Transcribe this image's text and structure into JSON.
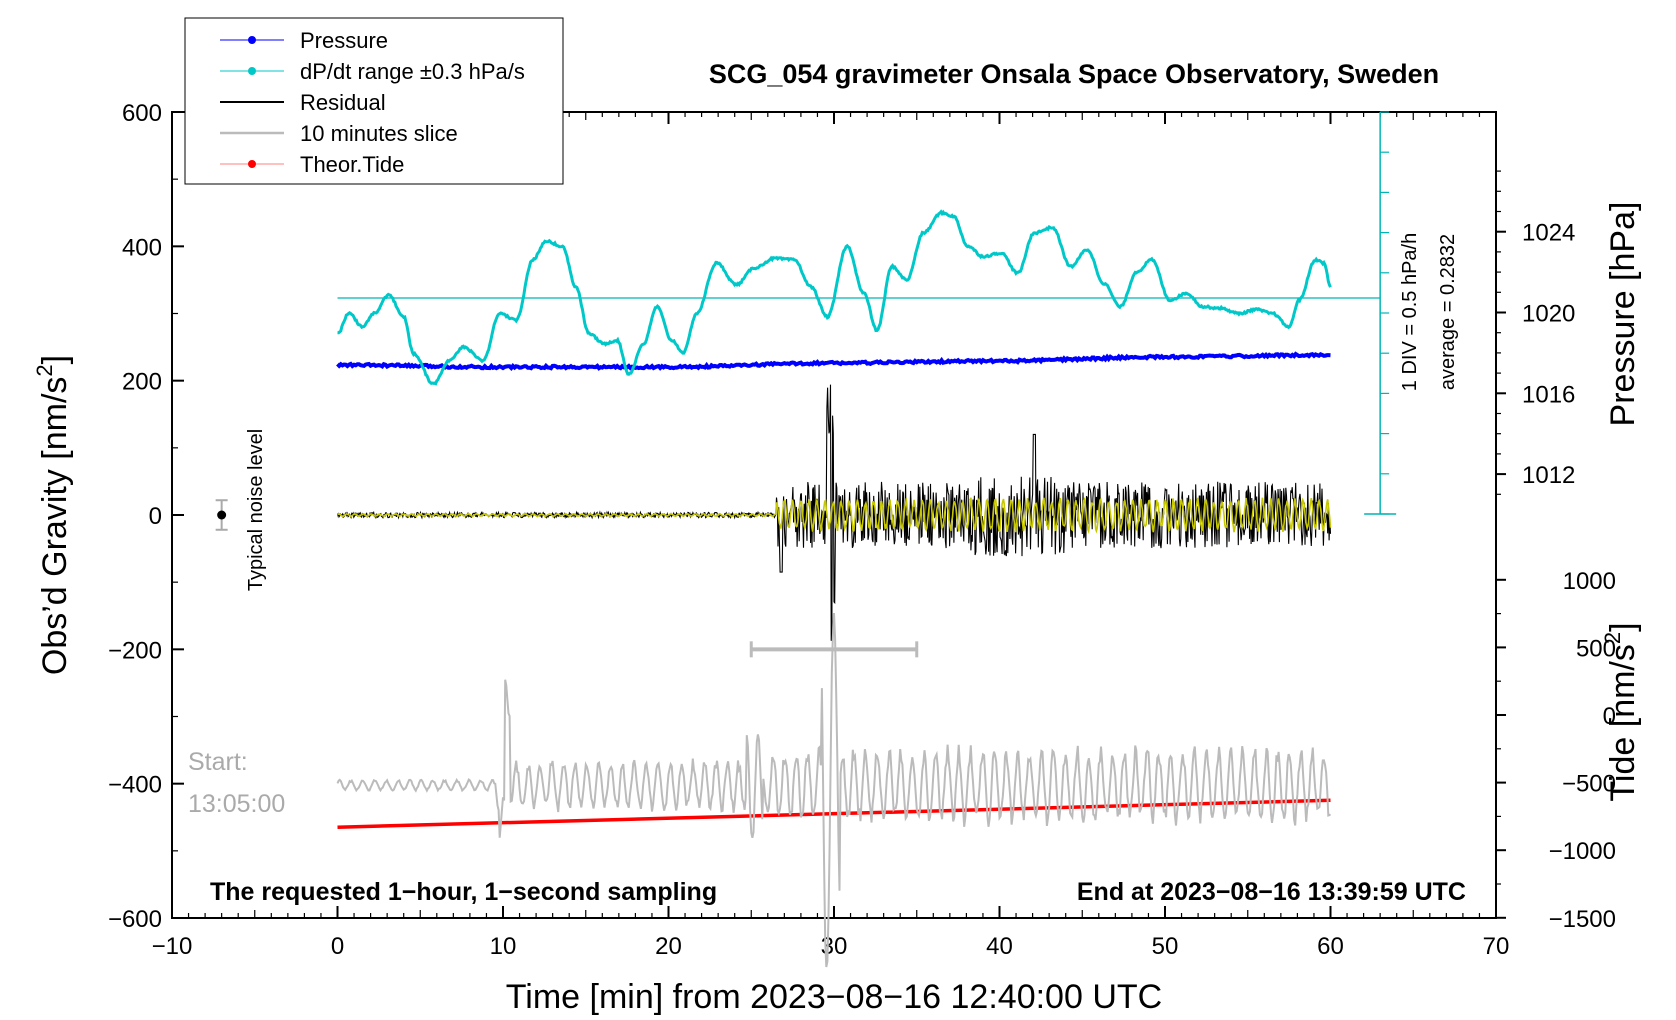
{
  "chart_data": {
    "type": "line",
    "title": "SCG_054 gravimeter Onsala Space Observatory, Sweden",
    "xlabel": "Time [min] from 2023−08−16 12:40:00 UTC",
    "ylabel_left_text": "Obs’d Gravity [nm/s",
    "ylabel_left_sup": "2",
    "ylabel_left_close": "]",
    "ylabel_right_pressure": "Pressure [hPa]",
    "ylabel_right_tide_text": "Tide [nm/s",
    "ylabel_right_tide_sup": "2",
    "ylabel_right_tide_close": "]",
    "xlim": [
      -10,
      70
    ],
    "xticks": [
      -10,
      0,
      10,
      20,
      30,
      40,
      50,
      60,
      70
    ],
    "xtick_labels": [
      "−10",
      "0",
      "10",
      "20",
      "30",
      "40",
      "50",
      "60",
      "70"
    ],
    "ylim": [
      -600,
      600
    ],
    "yticks": [
      -600,
      -400,
      -200,
      0,
      200,
      400,
      600
    ],
    "ytick_labels": [
      "−600",
      "−400",
      "−200",
      "0",
      "200",
      "400",
      "600"
    ],
    "pressure_ticks": [
      1012,
      1016,
      1020,
      1024
    ],
    "pressure_tick_labels": [
      "1012",
      "1016",
      "1020",
      "1024"
    ],
    "tide_ticks": [
      -1500,
      -1000,
      -500,
      0,
      500,
      1000
    ],
    "tide_tick_labels": [
      "−1500",
      "−1000",
      "−500",
      "0",
      "500",
      "1000"
    ],
    "legend": {
      "position": "top-left",
      "entries": [
        {
          "label": "Pressure",
          "color": "#0000ff"
        },
        {
          "label": "dP/dt range ±0.3 hPa/s",
          "color": "#00c8c8"
        },
        {
          "label": "Residual",
          "color": "#000000"
        },
        {
          "label": "10 minutes slice",
          "color": "#bbbbbb"
        },
        {
          "label": "Theor.Tide",
          "color": "#ff0000"
        }
      ]
    },
    "series": [
      {
        "name": "Pressure",
        "color": "#0000ff",
        "x": [
          0,
          10,
          20,
          30,
          40,
          50,
          60
        ],
        "y_hpa": [
          1017.4,
          1017.3,
          1017.3,
          1017.5,
          1017.6,
          1017.8,
          1017.9
        ]
      },
      {
        "name": "dP/dt",
        "color": "#00c8c8",
        "x": [
          0,
          0.7,
          1.5,
          2.2,
          3.1,
          4.0,
          4.6,
          5.8,
          6.8,
          7.6,
          8.8,
          9.8,
          10.8,
          11.8,
          12.6,
          13.6,
          14.4,
          15.2,
          16.1,
          16.9,
          17.6,
          18.5,
          19.3,
          20.2,
          20.9,
          21.7,
          22.9,
          24.1,
          25.2,
          26.4,
          27.6,
          28.6,
          29.6,
          30.8,
          31.8,
          32.6,
          33.5,
          34.4,
          35.4,
          36.5,
          37.2,
          38.1,
          39.0,
          40.1,
          41.1,
          42.1,
          43.2,
          44.3,
          45.3,
          46.3,
          47.3,
          48.3,
          49.2,
          50.3,
          51.3,
          52.3,
          53.3,
          54.5,
          55.5,
          56.5,
          57.5,
          58.1,
          59.1,
          59.6,
          60
        ],
        "y": [
          270,
          300,
          280,
          300,
          327,
          295,
          240,
          195,
          230,
          250,
          230,
          300,
          290,
          380,
          408,
          400,
          340,
          270,
          255,
          260,
          210,
          255,
          310,
          260,
          242,
          300,
          375,
          343,
          368,
          382,
          380,
          340,
          295,
          400,
          330,
          275,
          370,
          350,
          420,
          450,
          445,
          400,
          385,
          390,
          360,
          420,
          428,
          370,
          395,
          345,
          310,
          362,
          380,
          320,
          330,
          310,
          308,
          300,
          306,
          300,
          280,
          320,
          380,
          375,
          340
        ]
      },
      {
        "name": "Residual",
        "color": "#000000"
      },
      {
        "name": "Filtered residual",
        "color": "#c8c800"
      },
      {
        "name": "10 minutes slice",
        "color": "#bbbbbb",
        "tide_axis_offset_nm_s2": -520
      },
      {
        "name": "Theor.Tide",
        "color": "#ff0000",
        "x": [
          0,
          60
        ],
        "y_tide": [
          -830,
          -630
        ]
      }
    ],
    "noise_marker": {
      "x": -7,
      "y": 0,
      "error": 22,
      "label": "Typical noise level"
    },
    "slice_bar": {
      "x_start": 25,
      "x_end": 35,
      "y": -200
    },
    "pressure_scale": {
      "label_div": "1 DIV = 0.5 hPa/h",
      "label_avg": "average = 0.2832",
      "x": 63
    },
    "annotations": {
      "start_label": "Start:",
      "start_time": "13:05:00",
      "bottom_left": "The requested 1−hour, 1−second sampling",
      "bottom_right": "End at 2023−08−16 13:39:59 UTC"
    }
  }
}
